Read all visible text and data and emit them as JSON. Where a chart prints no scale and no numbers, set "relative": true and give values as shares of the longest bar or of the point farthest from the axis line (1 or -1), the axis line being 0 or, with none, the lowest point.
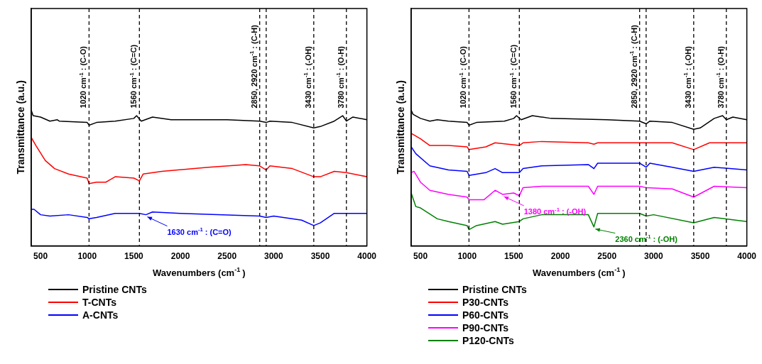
{
  "chart_data": [
    {
      "type": "line",
      "xlabel": "Wavenumbers (cm$^{-1}$)",
      "ylabel": "Transmittance (a.u.)",
      "relative": true,
      "xlim": [
        400,
        4000
      ],
      "xticks": [
        500,
        1000,
        1500,
        2000,
        2500,
        3000,
        3500,
        4000
      ],
      "tick_labels": "x",
      "grid": false,
      "legend": "bottom",
      "line_style": "solid",
      "series": [
        {
          "name": "Pristine CNTs",
          "color": "#000000",
          "x": [
            400,
            420,
            500,
            600,
            680,
            700,
            1000,
            1020,
            1100,
            1300,
            1500,
            1530,
            1580,
            1700,
            1900,
            2500,
            2850,
            2920,
            2960,
            3200,
            3430,
            3500,
            3650,
            3740,
            3780,
            3850,
            4000
          ],
          "values": [
            1.0,
            0.96,
            0.95,
            0.92,
            0.93,
            0.92,
            0.91,
            0.89,
            0.91,
            0.92,
            0.94,
            0.96,
            0.92,
            0.95,
            0.93,
            0.93,
            0.92,
            0.91,
            0.92,
            0.91,
            0.87,
            0.88,
            0.92,
            0.96,
            0.92,
            0.95,
            0.93
          ]
        },
        {
          "name": "T-CNTs",
          "color": "#ff0000",
          "x": [
            400,
            450,
            550,
            650,
            800,
            1000,
            1020,
            1100,
            1200,
            1300,
            1500,
            1560,
            1600,
            1800,
            2300,
            2700,
            2850,
            2920,
            2960,
            3200,
            3430,
            3500,
            3650,
            3780,
            4000
          ],
          "values": [
            0.8,
            0.74,
            0.63,
            0.57,
            0.53,
            0.5,
            0.46,
            0.47,
            0.47,
            0.51,
            0.5,
            0.48,
            0.53,
            0.55,
            0.58,
            0.6,
            0.59,
            0.56,
            0.59,
            0.57,
            0.51,
            0.51,
            0.55,
            0.54,
            0.51
          ]
        },
        {
          "name": "A-CNTs",
          "color": "#0000ff",
          "x": [
            400,
            430,
            500,
            600,
            800,
            1000,
            1020,
            1100,
            1300,
            1560,
            1630,
            1700,
            2000,
            2850,
            2920,
            3000,
            3300,
            3430,
            3500,
            3650,
            4000
          ],
          "values": [
            0.27,
            0.27,
            0.23,
            0.22,
            0.23,
            0.21,
            0.2,
            0.21,
            0.24,
            0.24,
            0.23,
            0.25,
            0.24,
            0.22,
            0.21,
            0.22,
            0.19,
            0.15,
            0.17,
            0.24,
            0.24
          ]
        }
      ],
      "ref_lines": [
        {
          "axis": "x",
          "value": 1020,
          "label": "1020 cm$^{-1}$: (C-O)",
          "color": "#000000",
          "line_style": "dashed"
        },
        {
          "axis": "x",
          "value": 1560,
          "label": "1560 cm$^{-1}$: (C=C)",
          "color": "#000000",
          "line_style": "dashed"
        },
        {
          "axis": "x",
          "value": 2850,
          "label": "2850, 2920 cm$^{-1}$: (C-H)",
          "color": "#000000",
          "line_style": "dashed"
        },
        {
          "axis": "x",
          "value": 2920,
          "label": null,
          "color": "#000000",
          "line_style": "dashed"
        },
        {
          "axis": "x",
          "value": 3430,
          "label": "3430 cm$^{-1}$: (-OH)",
          "color": "#000000",
          "line_style": "dashed"
        },
        {
          "axis": "x",
          "value": 3780,
          "label": "3780 cm$^{-1}$: (O-H)",
          "color": "#000000",
          "line_style": "dashed"
        }
      ],
      "annotations": [
        {
          "text": "1630 cm$^{-1}$: (C=O)",
          "x": 1630,
          "y": 0.23
        }
      ]
    },
    {
      "type": "line",
      "xlabel": "Wavenumbers (cm$^{-1}$)",
      "ylabel": "Transmittance (a.u.)",
      "relative": true,
      "xlim": [
        400,
        4000
      ],
      "xticks": [
        500,
        1000,
        1500,
        2000,
        2500,
        3000,
        3500,
        4000
      ],
      "tick_labels": "x",
      "grid": false,
      "legend": "bottom",
      "line_style": "solid",
      "series": [
        {
          "name": "Pristine CNTs",
          "color": "#000000",
          "x": [
            400,
            420,
            500,
            600,
            680,
            800,
            1000,
            1020,
            1100,
            1400,
            1500,
            1530,
            1580,
            1700,
            1900,
            2500,
            2850,
            2920,
            2960,
            3200,
            3430,
            3500,
            3650,
            3740,
            3780,
            3850,
            4000
          ],
          "values": [
            1.0,
            0.97,
            0.94,
            0.92,
            0.93,
            0.92,
            0.91,
            0.89,
            0.91,
            0.92,
            0.94,
            0.96,
            0.93,
            0.96,
            0.94,
            0.93,
            0.92,
            0.9,
            0.92,
            0.91,
            0.86,
            0.87,
            0.94,
            0.96,
            0.93,
            0.95,
            0.93
          ]
        },
        {
          "name": "P30-CNTs",
          "color": "#ff0000",
          "x": [
            400,
            500,
            600,
            800,
            1000,
            1020,
            1200,
            1300,
            1560,
            1600,
            1800,
            2300,
            2360,
            2400,
            2850,
            3200,
            3430,
            3600,
            4000
          ],
          "values": [
            0.83,
            0.79,
            0.74,
            0.74,
            0.73,
            0.71,
            0.73,
            0.76,
            0.74,
            0.76,
            0.77,
            0.76,
            0.75,
            0.76,
            0.76,
            0.76,
            0.71,
            0.76,
            0.76
          ]
        },
        {
          "name": "P60-CNTs",
          "color": "#0000ff",
          "x": [
            400,
            450,
            600,
            800,
            1000,
            1020,
            1200,
            1300,
            1380,
            1560,
            1600,
            1800,
            2300,
            2360,
            2400,
            2850,
            2920,
            2960,
            3200,
            3430,
            3650,
            4000
          ],
          "values": [
            0.73,
            0.68,
            0.59,
            0.56,
            0.55,
            0.52,
            0.54,
            0.57,
            0.54,
            0.54,
            0.57,
            0.59,
            0.6,
            0.57,
            0.61,
            0.61,
            0.58,
            0.61,
            0.58,
            0.55,
            0.58,
            0.56
          ]
        },
        {
          "name": "P90-CNTs",
          "color": "#ff00ff",
          "x": [
            400,
            430,
            500,
            600,
            800,
            1000,
            1020,
            1180,
            1300,
            1380,
            1500,
            1560,
            1600,
            1800,
            2300,
            2360,
            2400,
            2850,
            2920,
            3200,
            3430,
            3650,
            4000
          ],
          "values": [
            0.54,
            0.55,
            0.47,
            0.41,
            0.38,
            0.36,
            0.34,
            0.34,
            0.41,
            0.38,
            0.39,
            0.37,
            0.43,
            0.44,
            0.44,
            0.38,
            0.44,
            0.44,
            0.43,
            0.42,
            0.36,
            0.44,
            0.43
          ]
        },
        {
          "name": "P120-CNTs",
          "color": "#008000",
          "x": [
            400,
            450,
            500,
            680,
            800,
            1000,
            1020,
            1100,
            1300,
            1380,
            1560,
            1600,
            1800,
            2300,
            2360,
            2400,
            2850,
            2920,
            3000,
            3430,
            3650,
            4000
          ],
          "values": [
            0.39,
            0.29,
            0.28,
            0.2,
            0.18,
            0.15,
            0.12,
            0.15,
            0.18,
            0.16,
            0.18,
            0.2,
            0.23,
            0.23,
            0.14,
            0.24,
            0.24,
            0.22,
            0.23,
            0.17,
            0.21,
            0.18
          ]
        }
      ],
      "ref_lines": [
        {
          "axis": "x",
          "value": 1020,
          "label": "1020 cm$^{-1}$: (C-O)",
          "color": "#000000",
          "line_style": "dashed"
        },
        {
          "axis": "x",
          "value": 1560,
          "label": "1560 cm$^{-1}$: (C=C)",
          "color": "#000000",
          "line_style": "dashed"
        },
        {
          "axis": "x",
          "value": 2850,
          "label": "2850, 2920 cm$^{-1}$: (C-H)",
          "color": "#000000",
          "line_style": "dashed"
        },
        {
          "axis": "x",
          "value": 2920,
          "label": null,
          "color": "#000000",
          "line_style": "dashed"
        },
        {
          "axis": "x",
          "value": 3430,
          "label": "3430 cm$^{-1}$: (-OH)",
          "color": "#000000",
          "line_style": "dashed"
        },
        {
          "axis": "x",
          "value": 3780,
          "label": "3780 cm$^{-1}$: (O-H)",
          "color": "#000000",
          "line_style": "dashed"
        }
      ],
      "annotations": [
        {
          "text": "1380 cm$^{-1}$: (-OH)",
          "x": 1380,
          "y": 0.38
        },
        {
          "text": "2360 cm$^{-1}$: (-OH)",
          "x": 2360,
          "y": 0.14
        }
      ]
    }
  ]
}
